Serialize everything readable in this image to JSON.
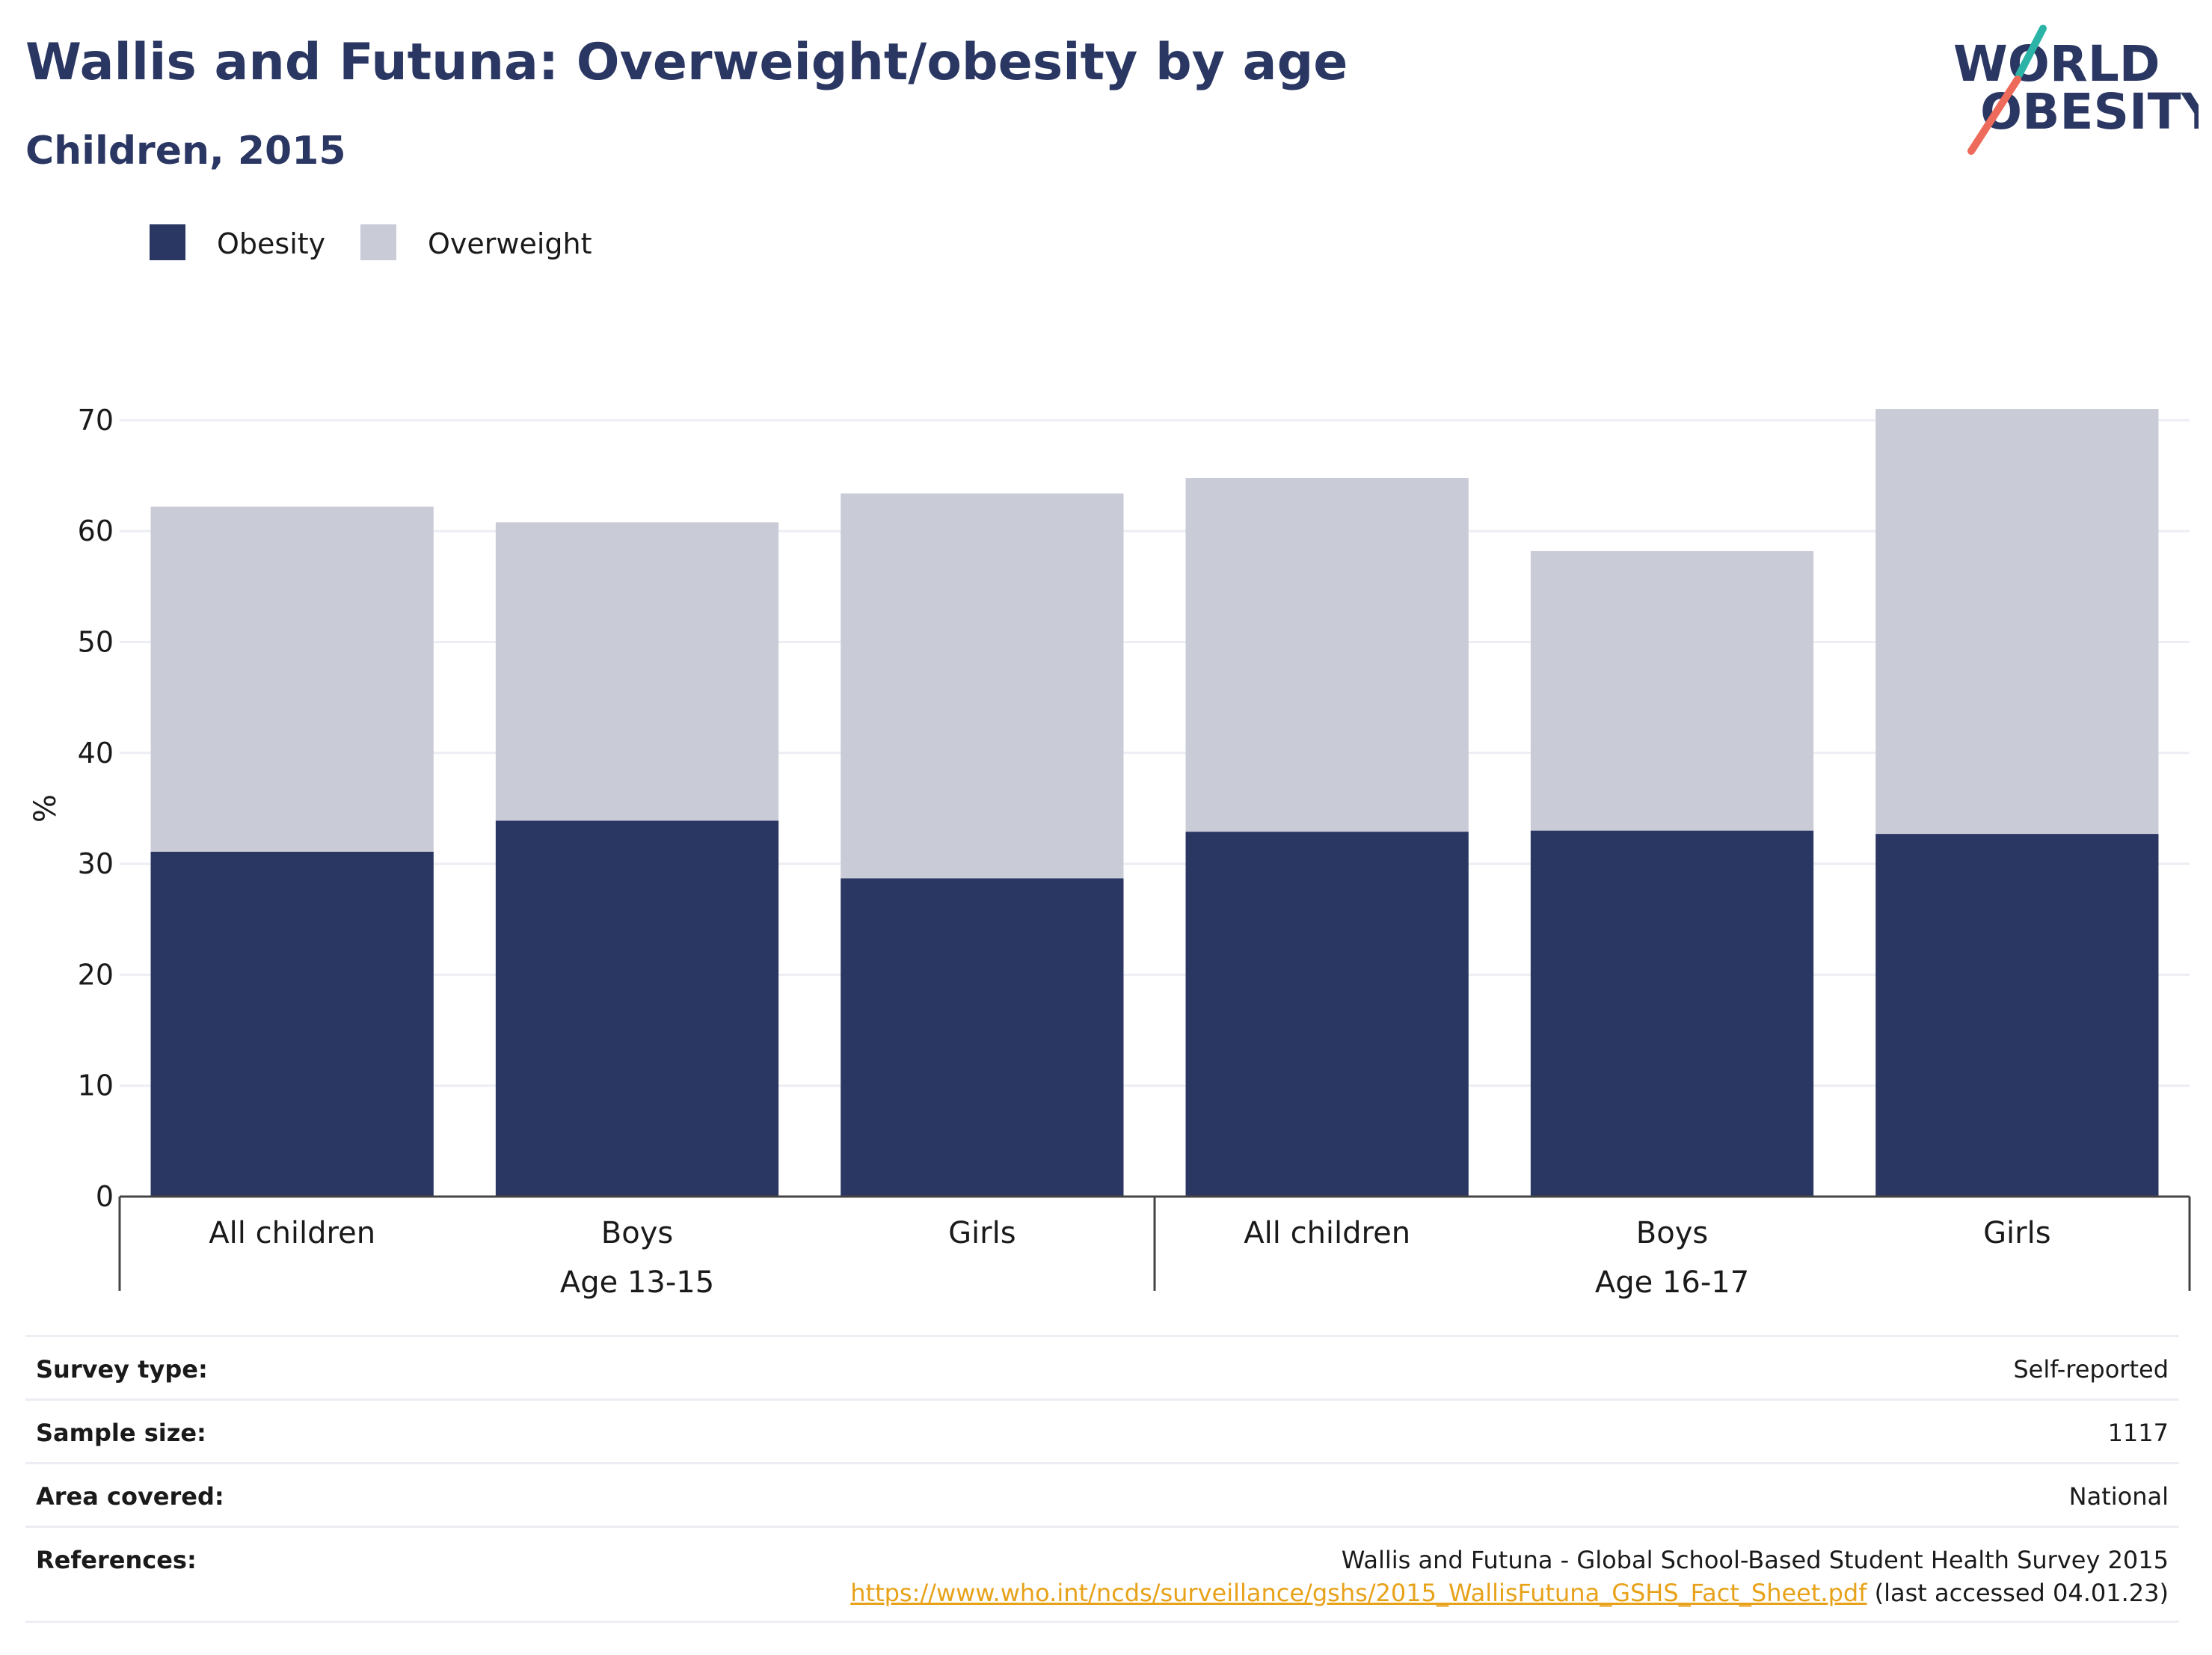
{
  "header": {
    "title": "Wallis and Futuna: Overweight/obesity by age",
    "subtitle": "Children, 2015"
  },
  "logo": {
    "line1": "WORLD",
    "line2": "OBESITY"
  },
  "legend": {
    "items": [
      {
        "label": "Obesity",
        "color": "#2b3763"
      },
      {
        "label": "Overweight",
        "color": "#c9cbd7"
      }
    ]
  },
  "chart_data": {
    "type": "bar",
    "stacked": true,
    "ylabel": "%",
    "ylim": [
      0,
      75
    ],
    "yticks": [
      0,
      10,
      20,
      30,
      40,
      50,
      60,
      70
    ],
    "grid": true,
    "legend_position": "top-left",
    "categories": [
      "All children",
      "Boys",
      "Girls",
      "All children",
      "Boys",
      "Girls"
    ],
    "groups": [
      {
        "label": "Age 13-15",
        "categories": [
          "All children",
          "Boys",
          "Girls"
        ]
      },
      {
        "label": "Age 16-17",
        "categories": [
          "All children",
          "Boys",
          "Girls"
        ]
      }
    ],
    "series": [
      {
        "name": "Obesity",
        "color": "#2b3763",
        "values": [
          31.1,
          33.9,
          28.7,
          32.9,
          33.0,
          32.7
        ]
      },
      {
        "name": "Overweight",
        "color": "#c9cbd7",
        "values": [
          31.1,
          26.9,
          34.7,
          31.9,
          25.2,
          38.3
        ]
      }
    ]
  },
  "meta": {
    "survey_type": {
      "label": "Survey type:",
      "value": "Self-reported"
    },
    "sample_size": {
      "label": "Sample size:",
      "value": "1117"
    },
    "area_covered": {
      "label": "Area covered:",
      "value": "National"
    },
    "references": {
      "label": "References:",
      "line1": "Wallis and Futuna - Global School-Based Student Health Survey 2015",
      "link": "https://www.who.int/ncds/surveillance/gshs/2015_WallisFutuna_GSHS_Fact_Sheet.pdf",
      "suffix": " (last accessed 04.01.23)"
    }
  }
}
